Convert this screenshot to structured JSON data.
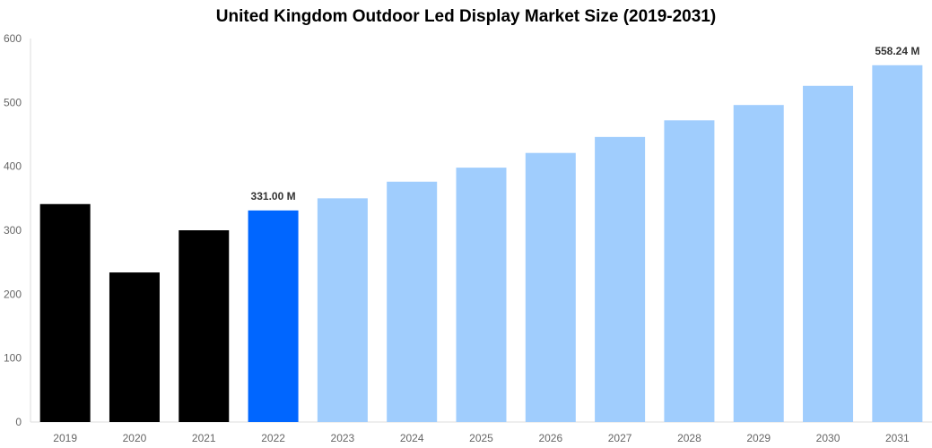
{
  "chart_data": {
    "type": "bar",
    "title": "United Kingdom Outdoor Led Display Market Size (2019-2031)",
    "xlabel": "",
    "ylabel": "",
    "ylim": [
      0,
      600
    ],
    "yticks": [
      0,
      100,
      200,
      300,
      400,
      500,
      600
    ],
    "grid": false,
    "categories": [
      "2019",
      "2020",
      "2021",
      "2022",
      "2023",
      "2024",
      "2025",
      "2026",
      "2027",
      "2028",
      "2029",
      "2030",
      "2031"
    ],
    "values": [
      341,
      234,
      300,
      331.0,
      350,
      376,
      398,
      421,
      446,
      472,
      496,
      526,
      558.24
    ],
    "colors": [
      "#000000",
      "#000000",
      "#000000",
      "#0066ff",
      "#a0cdfd",
      "#a0cdfd",
      "#a0cdfd",
      "#a0cdfd",
      "#a0cdfd",
      "#a0cdfd",
      "#a0cdfd",
      "#a0cdfd",
      "#a0cdfd"
    ],
    "data_labels": [
      {
        "category": "2022",
        "text": "331.00 M"
      },
      {
        "category": "2031",
        "text": "558.24 M"
      }
    ]
  }
}
